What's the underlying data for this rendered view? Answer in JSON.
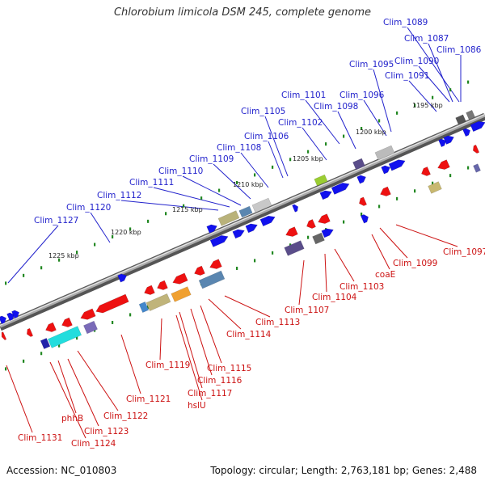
{
  "title": "Chlorobium limicola DSM 245, complete genome",
  "footer": {
    "accession": "Accession: NC_010803",
    "summary": "Topology: circular; Length: 2,763,181 bp; Genes: 2,488"
  },
  "colors": {
    "forward_gene": "#1111ee",
    "reverse_gene": "#ee1111",
    "backbone": "#888888",
    "tick": "#228822",
    "forward_label": "#2222cc",
    "reverse_label": "#cc1111"
  },
  "ticks": [
    "1195 kbp",
    "1200 kbp",
    "1205 kbp",
    "1210 kbp",
    "1215 kbp",
    "1220 kbp",
    "1225 kbp"
  ],
  "forward_labels": [
    "Clim_1089",
    "Clim_1087",
    "Clim_1090",
    "Clim_1086",
    "Clim_1095",
    "Clim_1091",
    "Clim_1101",
    "Clim_1096",
    "Clim_1098",
    "Clim_1105",
    "Clim_1102",
    "Clim_1106",
    "Clim_1108",
    "Clim_1109",
    "Clim_1110",
    "Clim_1111",
    "Clim_1112",
    "Clim_1120",
    "Clim_1127"
  ],
  "reverse_labels": [
    "Clim_1097",
    "Clim_1099",
    "coaE",
    "Clim_1103",
    "Clim_1104",
    "Clim_1107",
    "Clim_1113",
    "Clim_1114",
    "Clim_1115",
    "Clim_1116",
    "Clim_1117",
    "hslU",
    "Clim_1119",
    "Clim_1121",
    "Clim_1122",
    "Clim_1123",
    "phhB",
    "Clim_1124",
    "Clim_1131"
  ]
}
